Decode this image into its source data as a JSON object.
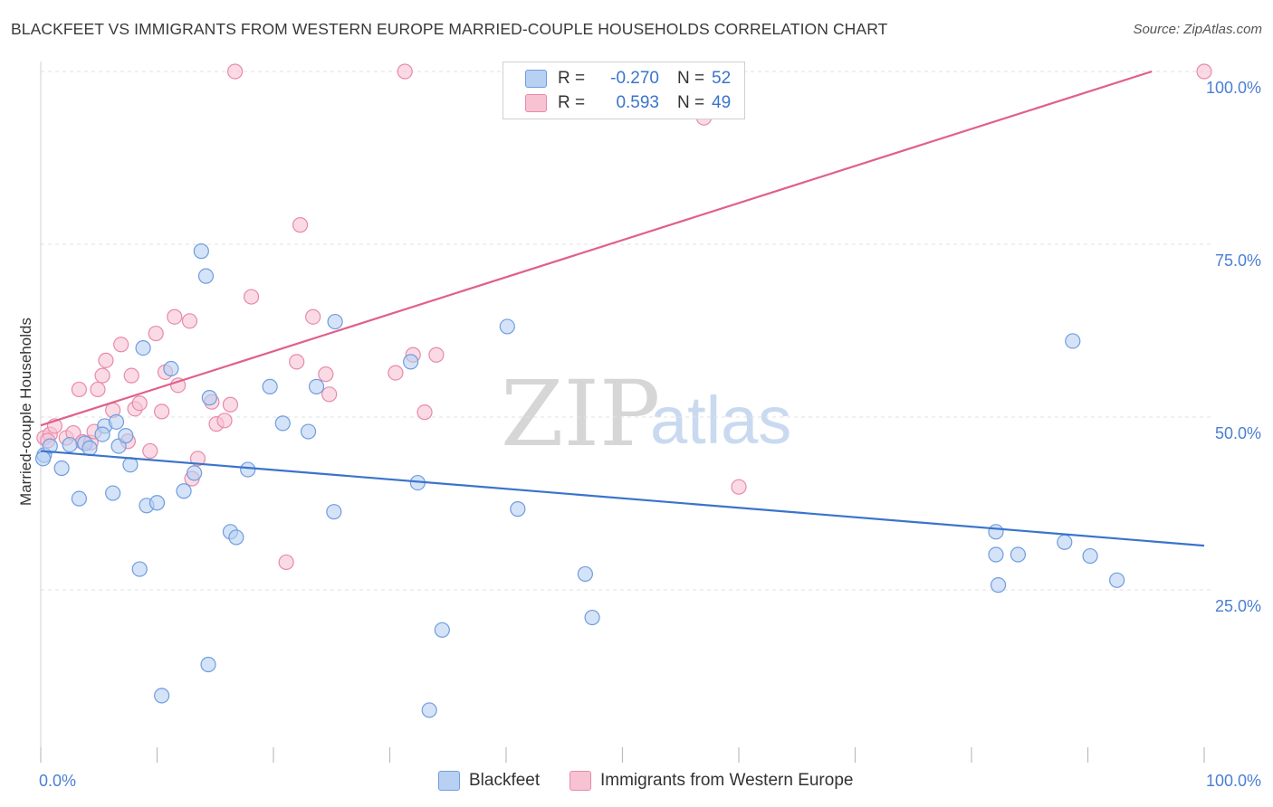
{
  "title": "BLACKFEET VS IMMIGRANTS FROM WESTERN EUROPE MARRIED-COUPLE HOUSEHOLDS CORRELATION CHART",
  "source": "Source: ZipAtlas.com",
  "watermark": {
    "part1": "ZIP",
    "part2": "atlas"
  },
  "colors": {
    "blue_fill": "#b8d0f2",
    "blue_stroke": "#6f9ddf",
    "blue_line": "#3a74cc",
    "pink_fill": "#f7c3d3",
    "pink_stroke": "#e88aa8",
    "pink_line": "#e0608a",
    "tick_text": "#4a7fd4",
    "grid": "#e2e2e2"
  },
  "legend": {
    "rows": [
      {
        "r_label": "R =",
        "r_value": "-0.270",
        "n_label": "N =",
        "n_value": "52",
        "color": "#b8d0f2"
      },
      {
        "r_label": "R =",
        "r_value": "0.593",
        "n_label": "N =",
        "n_value": "49",
        "color": "#f7c3d3"
      }
    ]
  },
  "bottom_legend": [
    {
      "label": "Blackfeet",
      "color": "#b8d0f2"
    },
    {
      "label": "Immigrants from Western Europe",
      "color": "#f7c3d3"
    }
  ],
  "chart_data": {
    "type": "scatter",
    "title": "BLACKFEET VS IMMIGRANTS FROM WESTERN EUROPE MARRIED-COUPLE HOUSEHOLDS CORRELATION CHART",
    "xlabel": "",
    "ylabel": "Married-couple Households",
    "xlim": [
      0,
      100
    ],
    "ylim": [
      0,
      100
    ],
    "x_tick_labels": [
      "0.0%",
      "100.0%"
    ],
    "y_tick_labels": [
      "25.0%",
      "50.0%",
      "75.0%",
      "100.0%"
    ],
    "y_tick_values": [
      25,
      50,
      75,
      100
    ],
    "grid": true,
    "legend_position": "top-center",
    "series": [
      {
        "name": "Blackfeet",
        "r": -0.27,
        "n": 52,
        "trend": {
          "x": [
            0,
            100
          ],
          "y": [
            45.1,
            31.4
          ]
        },
        "points": [
          [
            0.3,
            44.5
          ],
          [
            0.8,
            45.8
          ],
          [
            1.8,
            42.6
          ],
          [
            2.5,
            46.0
          ],
          [
            3.3,
            38.2
          ],
          [
            3.8,
            46.2
          ],
          [
            4.2,
            45.5
          ],
          [
            5.5,
            48.7
          ],
          [
            5.3,
            47.5
          ],
          [
            6.2,
            39.0
          ],
          [
            6.5,
            49.3
          ],
          [
            6.7,
            45.8
          ],
          [
            7.3,
            47.3
          ],
          [
            7.7,
            43.1
          ],
          [
            8.5,
            28.0
          ],
          [
            8.8,
            60.0
          ],
          [
            9.1,
            37.2
          ],
          [
            10.0,
            37.6
          ],
          [
            10.4,
            9.7
          ],
          [
            11.2,
            57.0
          ],
          [
            12.3,
            39.3
          ],
          [
            13.2,
            41.9
          ],
          [
            13.8,
            74.0
          ],
          [
            14.4,
            14.2
          ],
          [
            14.2,
            70.4
          ],
          [
            14.5,
            52.8
          ],
          [
            16.3,
            33.4
          ],
          [
            16.8,
            32.6
          ],
          [
            17.8,
            42.4
          ],
          [
            19.7,
            54.4
          ],
          [
            20.8,
            49.1
          ],
          [
            23.0,
            47.9
          ],
          [
            23.7,
            54.4
          ],
          [
            25.2,
            36.3
          ],
          [
            25.3,
            63.8
          ],
          [
            31.8,
            58.0
          ],
          [
            32.4,
            40.5
          ],
          [
            33.4,
            7.6
          ],
          [
            34.5,
            19.2
          ],
          [
            40.1,
            63.1
          ],
          [
            41.0,
            36.7
          ],
          [
            46.8,
            27.3
          ],
          [
            47.4,
            21.0
          ],
          [
            82.1,
            33.4
          ],
          [
            84.0,
            30.1
          ],
          [
            82.1,
            30.1
          ],
          [
            88.0,
            31.9
          ],
          [
            88.7,
            61.0
          ],
          [
            90.2,
            29.9
          ],
          [
            92.5,
            26.4
          ],
          [
            82.3,
            25.7
          ],
          [
            0.2,
            44.0
          ]
        ]
      },
      {
        "name": "Immigrants from Western Europe",
        "r": 0.593,
        "n": 49,
        "trend": {
          "x": [
            0,
            95.5
          ],
          "y": [
            48.8,
            100
          ]
        },
        "points": [
          [
            0.3,
            47.0
          ],
          [
            0.8,
            47.5
          ],
          [
            1.2,
            48.7
          ],
          [
            2.2,
            47.0
          ],
          [
            2.8,
            47.7
          ],
          [
            3.3,
            54.0
          ],
          [
            3.6,
            46.4
          ],
          [
            4.3,
            46.3
          ],
          [
            4.6,
            47.9
          ],
          [
            4.9,
            54.0
          ],
          [
            5.3,
            56.0
          ],
          [
            5.6,
            58.2
          ],
          [
            6.2,
            51.0
          ],
          [
            6.9,
            60.5
          ],
          [
            7.5,
            46.5
          ],
          [
            7.8,
            56.0
          ],
          [
            8.1,
            51.2
          ],
          [
            8.5,
            52.0
          ],
          [
            9.4,
            45.1
          ],
          [
            9.9,
            62.1
          ],
          [
            10.4,
            50.8
          ],
          [
            10.7,
            56.5
          ],
          [
            11.5,
            64.5
          ],
          [
            11.8,
            54.6
          ],
          [
            12.8,
            63.9
          ],
          [
            13.5,
            44.0
          ],
          [
            13.0,
            41.1
          ],
          [
            14.7,
            52.2
          ],
          [
            15.1,
            49.0
          ],
          [
            15.8,
            49.5
          ],
          [
            16.3,
            51.8
          ],
          [
            16.7,
            100.0
          ],
          [
            18.1,
            67.4
          ],
          [
            21.1,
            29.0
          ],
          [
            22.0,
            58.0
          ],
          [
            22.3,
            77.8
          ],
          [
            23.4,
            64.5
          ],
          [
            24.5,
            56.2
          ],
          [
            24.8,
            53.3
          ],
          [
            30.5,
            56.4
          ],
          [
            31.3,
            100.0
          ],
          [
            32.0,
            59.0
          ],
          [
            33.0,
            50.7
          ],
          [
            34.0,
            59.0
          ],
          [
            47.5,
            100.0
          ],
          [
            57.0,
            93.3
          ],
          [
            60.0,
            39.9
          ],
          [
            100.0,
            100.0
          ],
          [
            0.6,
            46.6
          ]
        ]
      }
    ]
  }
}
